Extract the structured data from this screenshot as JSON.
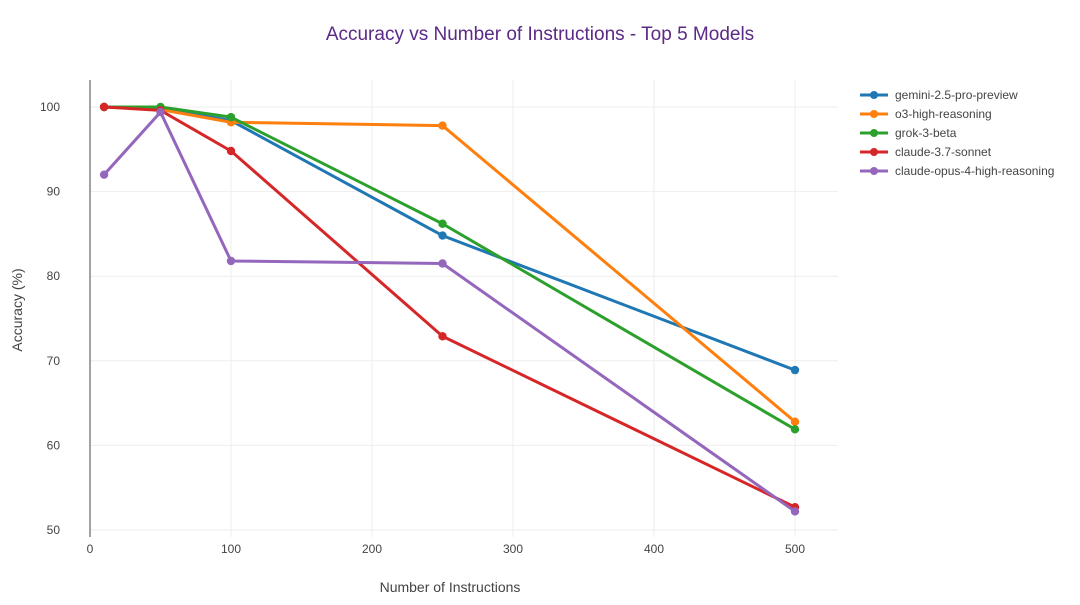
{
  "chart_data": {
    "type": "line",
    "title": "Accuracy vs Number of Instructions - Top 5 Models",
    "xlabel": "Number of Instructions",
    "ylabel": "Accuracy (%)",
    "x": [
      10,
      50,
      100,
      250,
      500
    ],
    "xlim": [
      0,
      530
    ],
    "ylim": [
      50,
      103
    ],
    "xticks": [
      0,
      100,
      200,
      300,
      400,
      500
    ],
    "yticks": [
      50,
      60,
      70,
      80,
      90,
      100
    ],
    "grid": true,
    "legend_position": "top-right",
    "series": [
      {
        "name": "gemini-2.5-pro-preview",
        "color": "#1f77b4",
        "values": [
          100,
          99.8,
          98.4,
          84.8,
          68.9
        ]
      },
      {
        "name": "o3-high-reasoning",
        "color": "#ff7f0e",
        "values": [
          100,
          99.7,
          98.2,
          97.8,
          62.8
        ]
      },
      {
        "name": "grok-3-beta",
        "color": "#2ca02c",
        "values": [
          100,
          100,
          98.8,
          86.2,
          61.9
        ]
      },
      {
        "name": "claude-3.7-sonnet",
        "color": "#d62728",
        "values": [
          100,
          99.6,
          94.8,
          72.9,
          52.7
        ]
      },
      {
        "name": "claude-opus-4-high-reasoning",
        "color": "#9467bd",
        "values": [
          92,
          99.4,
          81.8,
          81.5,
          52.2
        ]
      }
    ]
  },
  "colors": {
    "title": "#5b2a86",
    "grid": "#eeeeee",
    "axis": "#444444"
  }
}
